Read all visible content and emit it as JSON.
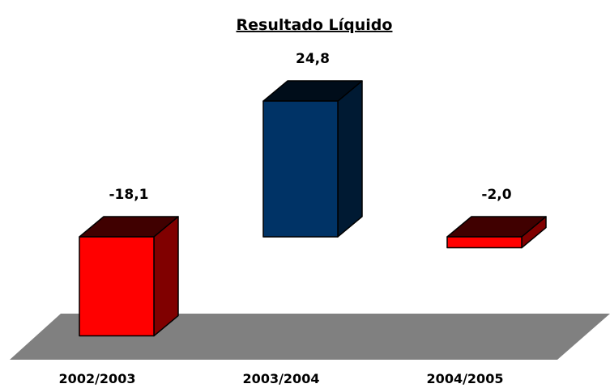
{
  "chart_data": {
    "type": "bar3d",
    "title": "Resultado Líquido",
    "categories": [
      "2002/2003",
      "2003/2004",
      "2004/2005"
    ],
    "values": [
      -18.1,
      24.8,
      -2.0
    ],
    "value_labels": [
      "-18,1",
      "24,8",
      "-2,0"
    ],
    "colors": [
      "#ff0000",
      "#003366",
      "#ff0000"
    ],
    "ylim": [
      -20,
      25
    ]
  }
}
